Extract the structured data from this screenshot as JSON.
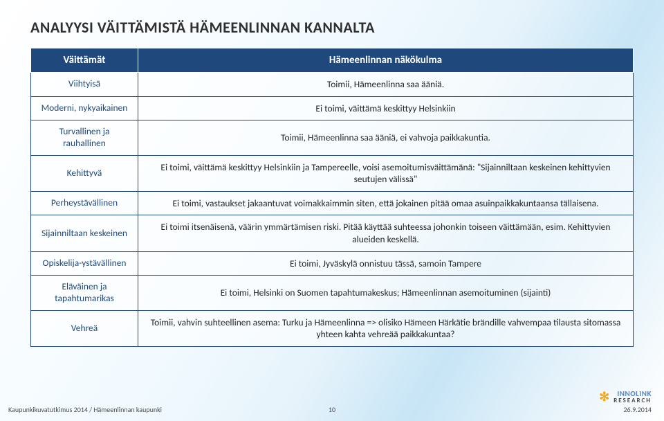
{
  "title": "ANALYYSI VÄITTÄMISTÄ HÄMEENLINNAN KANNALTA",
  "table": {
    "header_left": "Väittämät",
    "header_right": "Hämeenlinnan näkökulma",
    "rows": [
      {
        "label": "Viihtyisä",
        "value": "Toimii, Hämeenlinna saa ääniä."
      },
      {
        "label": "Moderni, nykyaikainen",
        "value": "Ei toimi, väittämä keskittyy Helsinkiin"
      },
      {
        "label": "Turvallinen ja rauhallinen",
        "value": "Toimii, Hämeenlinna saa ääniä, ei vahvoja paikkakuntia."
      },
      {
        "label": "Kehittyvä",
        "value": "Ei toimi, väittämä keskittyy Helsinkiin ja Tampereelle, voisi asemoitumisväittämänä: \"Sijainniltaan keskeinen kehittyvien seutujen välissä\""
      },
      {
        "label": "Perheystävällinen",
        "value": "Ei toimi, vastaukset jakaantuvat voimakkaimmin siten, että jokainen pitää omaa asuinpaikkakuntaansa tällaisena."
      },
      {
        "label": "Sijainniltaan keskeinen",
        "value": "Ei toimi itsenäisenä, väärin ymmärtämisen riski. Pitää käyttää suhteessa johonkin toiseen väittämään, esim. Kehittyvien alueiden keskellä."
      },
      {
        "label": "Opiskelija-ystävällinen",
        "value": "Ei toimi, Jyväskylä onnistuu tässä, samoin Tampere"
      },
      {
        "label": "Eläväinen ja tapahtumarikas",
        "value": "Ei toimi, Helsinki on Suomen tapahtumakeskus; Hämeenlinnan asemoituminen (sijainti)"
      },
      {
        "label": "Vehreä",
        "value": "Toimii, vahvin suhteellinen asema: Turku ja Hämeenlinna => olisiko Hämeen Härkätie brändille vahvempaa tilausta sitomassa yhteen kahta vehreää paikkakuntaa?"
      }
    ],
    "header_bg": "#1f497d",
    "header_fg": "#ffffff",
    "border_color": "#1f497d",
    "rowhead_fg": "#1f497d"
  },
  "footer": {
    "left": "Kaupunkikuvatutkimus 2014 / Hämeenlinnan kaupunki",
    "page": "10",
    "date": "26.9.2014",
    "logo_line1": "INNOLINK",
    "logo_line2": "RESEARCH"
  }
}
